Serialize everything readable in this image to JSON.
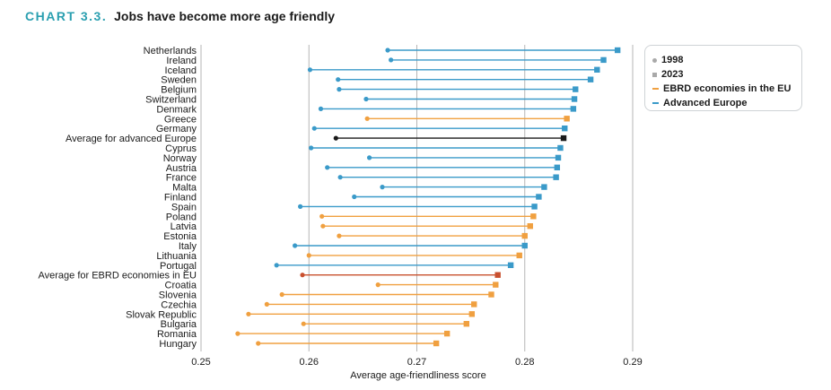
{
  "header": {
    "label": "CHART 3.3.",
    "title": "Jobs have become more age friendly"
  },
  "chart_data": {
    "type": "dumbbell",
    "xlabel": "Average age-friendliness score",
    "ylabel": "",
    "xlim": [
      0.25,
      0.29
    ],
    "xticks": [
      0.25,
      0.26,
      0.27,
      0.28,
      0.29
    ],
    "xtick_labels": [
      "0.25",
      "0.26",
      "0.27",
      "0.28",
      "0.29"
    ],
    "grid": "vertical",
    "legend_placement": "top-right",
    "legend": [
      {
        "label": "1998",
        "marker": "dot"
      },
      {
        "label": "2023",
        "marker": "square"
      },
      {
        "label": "EBRD economies in the EU",
        "marker": "line",
        "color": "#f0a040"
      },
      {
        "label": "Advanced Europe",
        "marker": "line",
        "color": "#3a9ac9"
      }
    ],
    "colors": {
      "ebrd": "#f0a040",
      "advanced": "#3a9ac9",
      "avg_advanced": "#1a1a1a",
      "avg_ebrd": "#c9502e"
    },
    "categories": [
      "Netherlands",
      "Ireland",
      "Iceland",
      "Sweden",
      "Belgium",
      "Switzerland",
      "Denmark",
      "Greece",
      "Germany",
      "Average for advanced Europe",
      "Cyprus",
      "Norway",
      "Austria",
      "France",
      "Malta",
      "Finland",
      "Spain",
      "Poland",
      "Latvia",
      "Estonia",
      "Italy",
      "Lithuania",
      "Portugal",
      "Average for EBRD economies in EU",
      "Croatia",
      "Slovenia",
      "Czechia",
      "Slovak Republic",
      "Bulgaria",
      "Romania",
      "Hungary"
    ],
    "groups": [
      "advanced",
      "advanced",
      "advanced",
      "advanced",
      "advanced",
      "advanced",
      "advanced",
      "ebrd",
      "advanced",
      "avg_advanced",
      "advanced",
      "advanced",
      "advanced",
      "advanced",
      "advanced",
      "advanced",
      "advanced",
      "ebrd",
      "ebrd",
      "ebrd",
      "advanced",
      "ebrd",
      "advanced",
      "avg_ebrd",
      "ebrd",
      "ebrd",
      "ebrd",
      "ebrd",
      "ebrd",
      "ebrd",
      "ebrd"
    ],
    "series": [
      {
        "name": "1998",
        "values": [
          0.2673,
          0.2676,
          0.2601,
          0.2627,
          0.2628,
          0.2653,
          0.2611,
          0.2654,
          0.2605,
          0.2625,
          0.2602,
          0.2656,
          0.2617,
          0.2629,
          0.2668,
          0.2642,
          0.2592,
          0.2612,
          0.2613,
          0.2628,
          0.2587,
          0.26,
          0.257,
          0.2594,
          0.2664,
          0.2575,
          0.2561,
          0.2544,
          0.2595,
          0.2534,
          0.2553
        ]
      },
      {
        "name": "2023",
        "values": [
          0.2886,
          0.2873,
          0.2867,
          0.2861,
          0.2847,
          0.2846,
          0.2845,
          0.2839,
          0.2837,
          0.2836,
          0.2833,
          0.2831,
          0.283,
          0.2829,
          0.2818,
          0.2813,
          0.2809,
          0.2808,
          0.2805,
          0.28,
          0.28,
          0.2795,
          0.2787,
          0.2775,
          0.2773,
          0.2769,
          0.2753,
          0.2751,
          0.2746,
          0.2728,
          0.2718
        ]
      }
    ]
  }
}
